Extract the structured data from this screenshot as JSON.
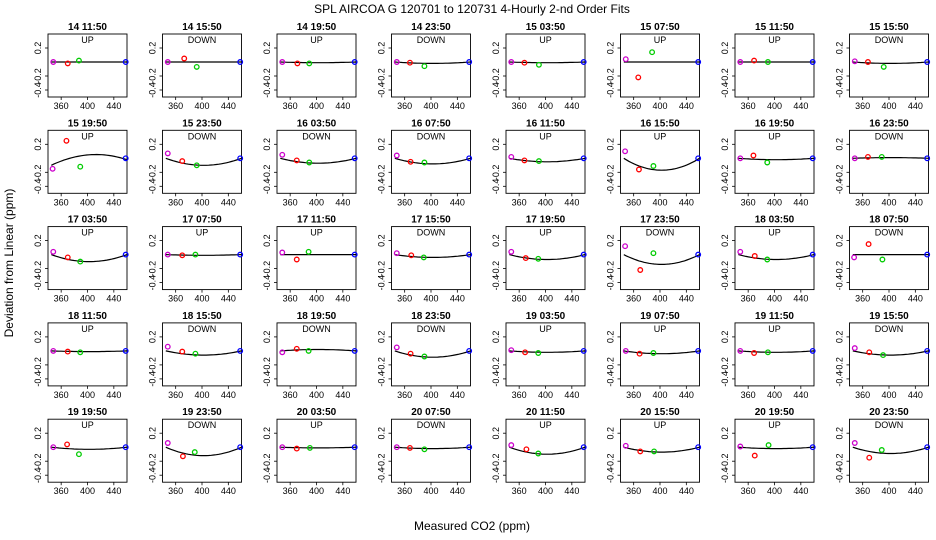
{
  "figure": {
    "title": "SPL   AIRCOA G   120701 to 120731   4-Hourly 2-nd Order Fits",
    "xlabel": "Measured CO2 (ppm)",
    "ylabel": "Deviation from Linear (ppm)"
  },
  "colors": {
    "curve": "#000000",
    "standard_1": "#cc00cc",
    "standard_2": "#ff0000",
    "standard_3": "#00cc00",
    "standard_4": "#0000ff"
  },
  "chart_data": {
    "type": "scatter",
    "layout": "small-multiples 5x8",
    "xlim": [
      340,
      460
    ],
    "ylim": [
      -0.5,
      0.4
    ],
    "xticks": [
      "360",
      "400",
      "440"
    ],
    "yticks": [
      "0.2",
      "-0.2",
      "-0.4"
    ],
    "ytick_values": [
      0.2,
      -0.2,
      -0.4
    ],
    "panels": [
      {
        "title": "14 11:50",
        "dir": "UP",
        "x": [
          348,
          370,
          387,
          458
        ],
        "y": [
          0,
          -0.02,
          0.02,
          0
        ],
        "curve": [
          0,
          0,
          0
        ]
      },
      {
        "title": "14 15:50",
        "dir": "DOWN",
        "x": [
          348,
          373,
          392,
          458
        ],
        "y": [
          0,
          0.05,
          -0.07,
          0
        ],
        "curve": [
          0,
          0,
          0
        ]
      },
      {
        "title": "14 19:50",
        "dir": "UP",
        "x": [
          348,
          371,
          389,
          458
        ],
        "y": [
          0,
          -0.02,
          -0.02,
          0
        ],
        "curve": [
          0,
          -0.01,
          0
        ]
      },
      {
        "title": "14 23:50",
        "dir": "DOWN",
        "x": [
          348,
          368,
          390,
          458
        ],
        "y": [
          0,
          -0.01,
          -0.06,
          0
        ],
        "curve": [
          0,
          -0.02,
          0
        ]
      },
      {
        "title": "15 03:50",
        "dir": "UP",
        "x": [
          348,
          368,
          390,
          458
        ],
        "y": [
          0,
          -0.01,
          -0.04,
          0
        ],
        "curve": [
          0,
          -0.01,
          0
        ]
      },
      {
        "title": "15 07:50",
        "dir": "UP",
        "x": [
          348,
          367,
          388,
          458
        ],
        "y": [
          0.04,
          -0.22,
          0.14,
          0
        ],
        "curve": [
          0,
          0,
          0
        ]
      },
      {
        "title": "15 11:50",
        "dir": "UP",
        "x": [
          348,
          369,
          390,
          458
        ],
        "y": [
          0,
          0.02,
          0,
          0
        ],
        "curve": [
          0,
          0,
          0
        ]
      },
      {
        "title": "15 15:50",
        "dir": "DOWN",
        "x": [
          348,
          368,
          392,
          458
        ],
        "y": [
          0.01,
          0,
          -0.07,
          0
        ],
        "curve": [
          0,
          -0.02,
          0
        ]
      },
      {
        "title": "15 19:50",
        "dir": "UP",
        "x": [
          347,
          368,
          389,
          458
        ],
        "y": [
          -0.15,
          0.25,
          -0.12,
          0
        ],
        "curve": [
          -0.1,
          0.05,
          -0.02
        ]
      },
      {
        "title": "15 23:50",
        "dir": "DOWN",
        "x": [
          348,
          370,
          392,
          458
        ],
        "y": [
          0.07,
          -0.04,
          -0.1,
          0
        ],
        "curve": [
          0,
          -0.1,
          0
        ]
      },
      {
        "title": "16 03:50",
        "dir": "DOWN",
        "x": [
          348,
          370,
          389,
          458
        ],
        "y": [
          0.05,
          -0.03,
          -0.06,
          0
        ],
        "curve": [
          0,
          -0.07,
          0
        ]
      },
      {
        "title": "16 07:50",
        "dir": "DOWN",
        "x": [
          348,
          369,
          390,
          458
        ],
        "y": [
          0.04,
          -0.05,
          -0.06,
          0
        ],
        "curve": [
          0,
          -0.08,
          0
        ]
      },
      {
        "title": "16 11:50",
        "dir": "UP",
        "x": [
          348,
          368,
          390,
          458
        ],
        "y": [
          0.02,
          -0.03,
          -0.04,
          0
        ],
        "curve": [
          0,
          -0.05,
          0
        ]
      },
      {
        "title": "16 15:50",
        "dir": "UP",
        "x": [
          347,
          368,
          390,
          458
        ],
        "y": [
          0.1,
          -0.16,
          -0.11,
          0
        ],
        "curve": [
          0,
          -0.17,
          0
        ]
      },
      {
        "title": "16 19:50",
        "dir": "UP",
        "x": [
          348,
          368,
          389,
          458
        ],
        "y": [
          0,
          0.04,
          -0.06,
          0
        ],
        "curve": [
          0,
          -0.02,
          0
        ]
      },
      {
        "title": "16 23:50",
        "dir": "DOWN",
        "x": [
          348,
          368,
          389,
          458
        ],
        "y": [
          0,
          0.02,
          0.02,
          0
        ],
        "curve": [
          0,
          0.01,
          0
        ]
      },
      {
        "title": "17 03:50",
        "dir": "UP",
        "x": [
          348,
          370,
          389,
          458
        ],
        "y": [
          0.04,
          -0.04,
          -0.1,
          0
        ],
        "curve": [
          0,
          -0.1,
          0
        ]
      },
      {
        "title": "17 07:50",
        "dir": "UP",
        "x": [
          348,
          370,
          390,
          458
        ],
        "y": [
          0,
          -0.01,
          0,
          0
        ],
        "curve": [
          0,
          -0.01,
          0
        ]
      },
      {
        "title": "17 11:50",
        "dir": "UP",
        "x": [
          348,
          370,
          388,
          458
        ],
        "y": [
          0.03,
          -0.07,
          0.04,
          0
        ],
        "curve": [
          0,
          0,
          0
        ]
      },
      {
        "title": "17 15:50",
        "dir": "DOWN",
        "x": [
          348,
          370,
          389,
          458
        ],
        "y": [
          0.02,
          -0.01,
          -0.04,
          0
        ],
        "curve": [
          0,
          -0.04,
          0
        ]
      },
      {
        "title": "17 19:50",
        "dir": "UP",
        "x": [
          348,
          370,
          389,
          458
        ],
        "y": [
          0.04,
          -0.05,
          -0.06,
          0
        ],
        "curve": [
          0,
          -0.07,
          0
        ]
      },
      {
        "title": "17 23:50",
        "dir": "DOWN",
        "x": [
          347,
          370,
          390,
          458
        ],
        "y": [
          0.12,
          -0.22,
          0.02,
          0
        ],
        "curve": [
          0,
          -0.14,
          0
        ]
      },
      {
        "title": "18 03:50",
        "dir": "UP",
        "x": [
          348,
          370,
          389,
          458
        ],
        "y": [
          0.04,
          -0.02,
          -0.07,
          0
        ],
        "curve": [
          0,
          -0.07,
          0
        ]
      },
      {
        "title": "18 07:50",
        "dir": "DOWN",
        "x": [
          347,
          369,
          390,
          458
        ],
        "y": [
          -0.04,
          0.15,
          -0.07,
          0
        ],
        "curve": [
          0,
          0,
          0
        ]
      },
      {
        "title": "18 11:50",
        "dir": "UP",
        "x": [
          348,
          370,
          389,
          458
        ],
        "y": [
          0,
          -0.01,
          -0.02,
          0
        ],
        "curve": [
          0,
          -0.01,
          0
        ]
      },
      {
        "title": "18 15:50",
        "dir": "DOWN",
        "x": [
          348,
          370,
          390,
          458
        ],
        "y": [
          0.06,
          -0.01,
          -0.04,
          0
        ],
        "curve": [
          0,
          -0.06,
          0
        ]
      },
      {
        "title": "18 19:50",
        "dir": "DOWN",
        "x": [
          348,
          370,
          388,
          458
        ],
        "y": [
          -0.02,
          0.03,
          0,
          0
        ],
        "curve": [
          0,
          0.02,
          0
        ]
      },
      {
        "title": "18 23:50",
        "dir": "DOWN",
        "x": [
          348,
          369,
          390,
          458
        ],
        "y": [
          0.05,
          -0.04,
          -0.08,
          0
        ],
        "curve": [
          0,
          -0.09,
          0
        ]
      },
      {
        "title": "19 03:50",
        "dir": "UP",
        "x": [
          348,
          369,
          389,
          458
        ],
        "y": [
          0.01,
          -0.02,
          -0.03,
          0
        ],
        "curve": [
          0,
          -0.02,
          0
        ]
      },
      {
        "title": "19 07:50",
        "dir": "UP",
        "x": [
          348,
          369,
          390,
          458
        ],
        "y": [
          0,
          -0.04,
          -0.03,
          0
        ],
        "curve": [
          0,
          -0.04,
          0
        ]
      },
      {
        "title": "19 11:50",
        "dir": "UP",
        "x": [
          348,
          369,
          390,
          458
        ],
        "y": [
          0,
          -0.03,
          -0.02,
          0
        ],
        "curve": [
          0,
          -0.02,
          0
        ]
      },
      {
        "title": "19 15:50",
        "dir": "DOWN",
        "x": [
          348,
          370,
          391,
          458
        ],
        "y": [
          0.04,
          -0.02,
          -0.06,
          0
        ],
        "curve": [
          0,
          -0.06,
          0
        ]
      },
      {
        "title": "19 19:50",
        "dir": "UP",
        "x": [
          348,
          369,
          387,
          458
        ],
        "y": [
          0,
          0.04,
          -0.1,
          0
        ],
        "curve": [
          0,
          -0.03,
          0
        ]
      },
      {
        "title": "19 23:50",
        "dir": "DOWN",
        "x": [
          348,
          371,
          389,
          458
        ],
        "y": [
          0.06,
          -0.13,
          -0.07,
          0
        ],
        "curve": [
          0,
          -0.12,
          0
        ]
      },
      {
        "title": "20 03:50",
        "dir": "UP",
        "x": [
          348,
          370,
          390,
          458
        ],
        "y": [
          0,
          -0.02,
          -0.01,
          0
        ],
        "curve": [
          0,
          -0.01,
          0
        ]
      },
      {
        "title": "20 07:50",
        "dir": "DOWN",
        "x": [
          348,
          368,
          390,
          458
        ],
        "y": [
          0,
          -0.01,
          -0.03,
          0
        ],
        "curve": [
          0,
          -0.02,
          0
        ]
      },
      {
        "title": "20 11:50",
        "dir": "UP",
        "x": [
          348,
          371,
          389,
          458
        ],
        "y": [
          0.03,
          -0.03,
          -0.09,
          0
        ],
        "curve": [
          0,
          -0.1,
          0
        ]
      },
      {
        "title": "20 15:50",
        "dir": "UP",
        "x": [
          348,
          370,
          391,
          458
        ],
        "y": [
          0.02,
          -0.06,
          -0.06,
          0
        ],
        "curve": [
          0,
          -0.07,
          0
        ]
      },
      {
        "title": "20 19:50",
        "dir": "UP",
        "x": [
          348,
          370,
          391,
          458
        ],
        "y": [
          0.01,
          -0.12,
          0.03,
          0
        ],
        "curve": [
          0,
          -0.02,
          0
        ]
      },
      {
        "title": "20 23:50",
        "dir": "DOWN",
        "x": [
          348,
          370,
          389,
          458
        ],
        "y": [
          0.06,
          -0.15,
          -0.04,
          0
        ],
        "curve": [
          0,
          -0.09,
          0
        ]
      }
    ]
  }
}
